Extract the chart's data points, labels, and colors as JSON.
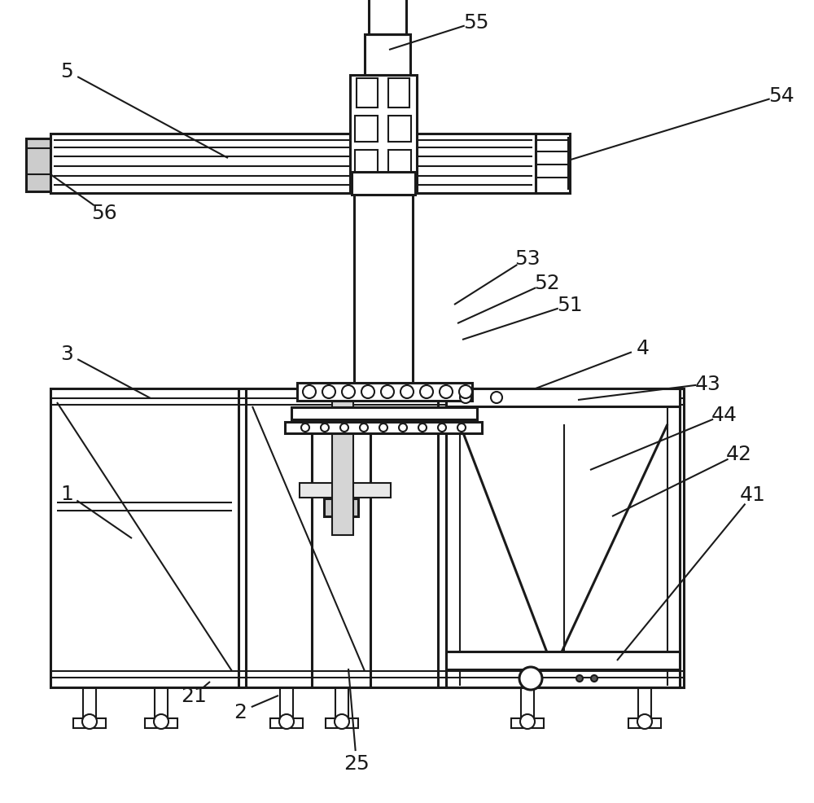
{
  "bg_color": "#ffffff",
  "line_color": "#1a1a1a",
  "fig_width": 10.0,
  "fig_height": 9.87,
  "label_fontsize": 18,
  "annotations": [
    [
      "5",
      82,
      88,
      280,
      195
    ],
    [
      "55",
      585,
      28,
      478,
      62
    ],
    [
      "54",
      960,
      118,
      698,
      198
    ],
    [
      "56",
      128,
      262,
      62,
      215
    ],
    [
      "53",
      648,
      318,
      558,
      375
    ],
    [
      "52",
      672,
      348,
      562,
      398
    ],
    [
      "51",
      700,
      375,
      568,
      418
    ],
    [
      "4",
      790,
      428,
      658,
      478
    ],
    [
      "3",
      82,
      435,
      185,
      490
    ],
    [
      "43",
      870,
      472,
      710,
      492
    ],
    [
      "44",
      890,
      510,
      725,
      578
    ],
    [
      "42",
      908,
      558,
      752,
      635
    ],
    [
      "41",
      925,
      608,
      758,
      812
    ],
    [
      "1",
      82,
      607,
      162,
      662
    ],
    [
      "21",
      238,
      855,
      258,
      838
    ],
    [
      "2",
      295,
      875,
      342,
      855
    ],
    [
      "25",
      438,
      938,
      428,
      822
    ]
  ]
}
